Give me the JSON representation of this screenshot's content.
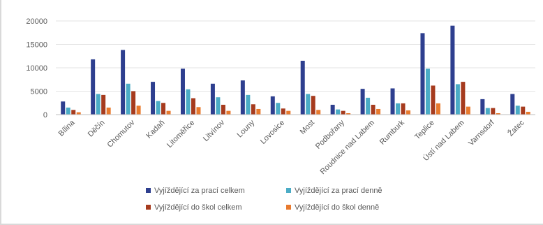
{
  "chart_data": {
    "type": "bar",
    "title": "",
    "xlabel": "",
    "ylabel": "",
    "ylim": [
      0,
      20000
    ],
    "yticks": [
      0,
      5000,
      10000,
      15000,
      20000
    ],
    "grid": true,
    "legend_position": "bottom",
    "categories": [
      "Bílina",
      "Děčín",
      "Chomutov",
      "Kadaň",
      "Litoměřice",
      "Litvínov",
      "Louny",
      "Lovosice",
      "Most",
      "Podbořany",
      "Roudnice nad Labem",
      "Rumburk",
      "Teplice",
      "Ústí nad Labem",
      "Varnsdorf",
      "Žatec"
    ],
    "series": [
      {
        "name": "Vyjíždějící za prací celkem",
        "color": "#2e3f8f",
        "values": [
          2800,
          11800,
          13800,
          7000,
          9800,
          6600,
          7300,
          3900,
          11500,
          2100,
          5500,
          5600,
          17400,
          19000,
          3300,
          4400
        ]
      },
      {
        "name": "Vyjíždějící za prací denně",
        "color": "#4bacc6",
        "values": [
          1500,
          4400,
          6600,
          2900,
          5400,
          3700,
          4200,
          2500,
          4400,
          1100,
          3600,
          2400,
          9800,
          6500,
          1400,
          1900
        ]
      },
      {
        "name": "Vyjíždějící do škol celkem",
        "color": "#a63b1e",
        "values": [
          1000,
          4200,
          5000,
          2500,
          3500,
          2100,
          2200,
          1300,
          4000,
          800,
          2100,
          2400,
          6200,
          7000,
          1400,
          1700
        ]
      },
      {
        "name": "Vyjíždějící do škol denně",
        "color": "#e87a2e",
        "values": [
          500,
          1500,
          1900,
          800,
          1600,
          800,
          1200,
          800,
          1000,
          300,
          1200,
          900,
          2400,
          1700,
          300,
          600
        ]
      }
    ]
  }
}
